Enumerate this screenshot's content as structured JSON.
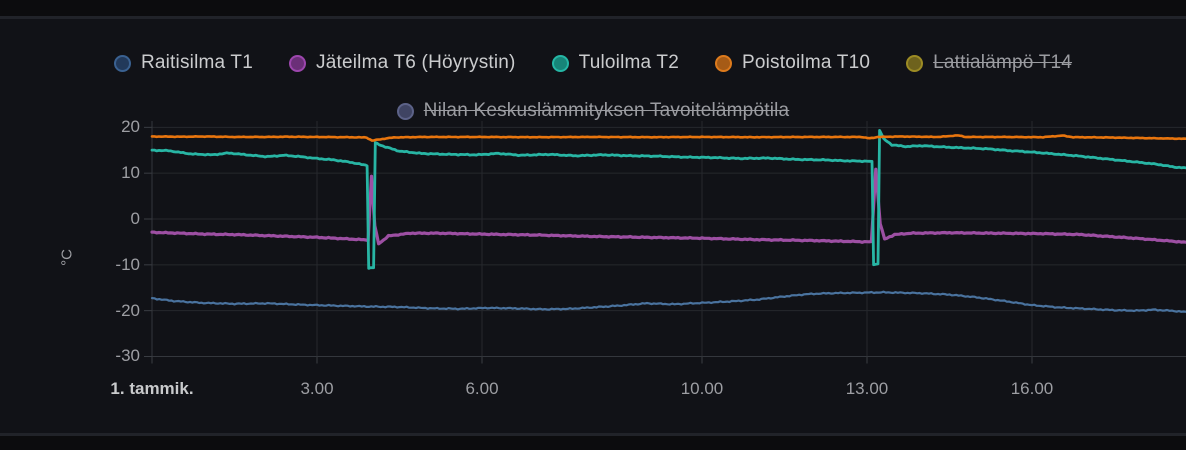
{
  "panel": {
    "background": "#111217",
    "page_background": "#0c0c0e",
    "divider_color": "#212329",
    "grid_color": "#26282d",
    "axis_line_color": "#34373d",
    "tick_color": "#3a3d43",
    "axis_label_color": "#9d9ea3",
    "axis_label_bold_color": "#c9cacc"
  },
  "legend": {
    "active_text_color": "#cbccce",
    "hidden_text_color": "#9b9ca1",
    "rows": [
      [
        {
          "label": "Raitisilma T1",
          "color": "#3a6191",
          "fill": "#22395a",
          "hidden": false
        },
        {
          "label": "Jäteilma T6 (Höyrystin)",
          "color": "#9c46ad",
          "fill": "#6b2f78",
          "hidden": false
        },
        {
          "label": "Tuloilma T2",
          "color": "#25b6a5",
          "fill": "#178578",
          "hidden": false
        },
        {
          "label": "Poistoilma T10",
          "color": "#dd7a1c",
          "fill": "#a65b16",
          "hidden": false
        },
        {
          "label": "Lattialämpö T14",
          "color": "#9c8b24",
          "fill": "#6e621d",
          "hidden": true
        }
      ],
      [
        {
          "label": "Nilan Keskuslämmityksen Tavoitelämpötila",
          "color": "#5c6288",
          "fill": "#3f4463",
          "hidden": true
        }
      ]
    ]
  },
  "chart_data": {
    "type": "line",
    "title": "",
    "xlabel": "",
    "ylabel": "°C",
    "x_unit": "hours_of_day",
    "xlim": [
      0,
      18.8
    ],
    "ylim": [
      -32,
      22
    ],
    "grid": true,
    "legend_position": "top",
    "y_ticks": [
      20,
      10,
      0,
      -10,
      -20,
      -30
    ],
    "x_ticks": [
      {
        "t": 0,
        "label": "1. tammik.",
        "bold": true
      },
      {
        "t": 3,
        "label": "3.00",
        "bold": false
      },
      {
        "t": 6,
        "label": "6.00",
        "bold": false
      },
      {
        "t": 10,
        "label": "10.00",
        "bold": false
      },
      {
        "t": 13,
        "label": "13.00",
        "bold": false
      },
      {
        "t": 16,
        "label": "16.00",
        "bold": false
      }
    ],
    "series": [
      {
        "name": "Raitisilma T1",
        "color": "#4a739f",
        "width": 2.2,
        "jitter": 0.14,
        "points": [
          [
            0,
            -17.3
          ],
          [
            0.4,
            -17.9
          ],
          [
            0.9,
            -18.3
          ],
          [
            1.5,
            -18.5
          ],
          [
            2.1,
            -18.4
          ],
          [
            2.7,
            -18.7
          ],
          [
            3.3,
            -18.9
          ],
          [
            3.9,
            -19.1
          ],
          [
            4.5,
            -19.2
          ],
          [
            5.1,
            -19.5
          ],
          [
            5.6,
            -19.6
          ],
          [
            6.1,
            -19.4
          ],
          [
            6.6,
            -19.5
          ],
          [
            7.1,
            -19.7
          ],
          [
            7.6,
            -19.6
          ],
          [
            8.0,
            -19.3
          ],
          [
            8.5,
            -18.9
          ],
          [
            9.0,
            -18.4
          ],
          [
            9.5,
            -18.6
          ],
          [
            10.0,
            -18.3
          ],
          [
            10.5,
            -18.0
          ],
          [
            11.0,
            -17.6
          ],
          [
            11.5,
            -16.9
          ],
          [
            11.9,
            -16.4
          ],
          [
            12.3,
            -16.2
          ],
          [
            13.3,
            -16.0
          ],
          [
            14.0,
            -16.2
          ],
          [
            14.5,
            -16.5
          ],
          [
            15.0,
            -17.1
          ],
          [
            15.5,
            -17.9
          ],
          [
            16.0,
            -18.8
          ],
          [
            16.5,
            -19.3
          ],
          [
            17.0,
            -19.6
          ],
          [
            17.5,
            -19.9
          ],
          [
            17.9,
            -20.0
          ],
          [
            18.2,
            -19.8
          ],
          [
            18.5,
            -20.0
          ],
          [
            18.8,
            -20.3
          ]
        ]
      },
      {
        "name": "Jäteilma T6 (Höyrystin)",
        "color": "#9d4fa3",
        "width": 3.2,
        "jitter": 0.12,
        "points": [
          [
            0,
            -2.9
          ],
          [
            0.5,
            -3.1
          ],
          [
            1,
            -3.3
          ],
          [
            1.5,
            -3.4
          ],
          [
            2,
            -3.6
          ],
          [
            2.5,
            -3.8
          ],
          [
            3,
            -4.0
          ],
          [
            3.5,
            -4.3
          ],
          [
            3.93,
            -4.6
          ],
          [
            3.99,
            9.3
          ],
          [
            4.05,
            -1.5
          ],
          [
            4.12,
            -5.4
          ],
          [
            4.3,
            -3.7
          ],
          [
            4.7,
            -3.1
          ],
          [
            5.2,
            -3.1
          ],
          [
            6,
            -3.3
          ],
          [
            7,
            -3.5
          ],
          [
            8,
            -3.8
          ],
          [
            9,
            -4.0
          ],
          [
            10,
            -4.2
          ],
          [
            11,
            -4.5
          ],
          [
            12,
            -4.7
          ],
          [
            12.7,
            -4.9
          ],
          [
            13.08,
            -5.0
          ],
          [
            13.16,
            10.9
          ],
          [
            13.24,
            -1.0
          ],
          [
            13.32,
            -4.4
          ],
          [
            13.5,
            -3.4
          ],
          [
            13.8,
            -3.1
          ],
          [
            14.5,
            -3.0
          ],
          [
            15.3,
            -3.1
          ],
          [
            16.2,
            -3.2
          ],
          [
            16.9,
            -3.4
          ],
          [
            17.5,
            -3.9
          ],
          [
            18.1,
            -4.4
          ],
          [
            18.8,
            -5.1
          ]
        ]
      },
      {
        "name": "Tuloilma T2",
        "color": "#28b5a4",
        "width": 2.8,
        "jitter": 0.12,
        "points": [
          [
            0,
            15.0
          ],
          [
            0.3,
            14.9
          ],
          [
            0.7,
            14.2
          ],
          [
            1.1,
            14.0
          ],
          [
            1.4,
            14.4
          ],
          [
            1.8,
            13.9
          ],
          [
            2.1,
            13.6
          ],
          [
            2.4,
            13.9
          ],
          [
            2.7,
            13.6
          ],
          [
            3.0,
            13.2
          ],
          [
            3.3,
            12.9
          ],
          [
            3.6,
            12.4
          ],
          [
            3.85,
            11.8
          ],
          [
            3.91,
            11.7
          ],
          [
            3.94,
            -10.7
          ],
          [
            4.03,
            -10.6
          ],
          [
            4.06,
            16.6
          ],
          [
            4.2,
            15.9
          ],
          [
            4.5,
            14.8
          ],
          [
            4.9,
            14.3
          ],
          [
            5.4,
            14.1
          ],
          [
            5.9,
            14.0
          ],
          [
            6.3,
            14.3
          ],
          [
            6.7,
            13.9
          ],
          [
            7.2,
            14.1
          ],
          [
            7.7,
            13.8
          ],
          [
            8.2,
            14.0
          ],
          [
            8.7,
            13.8
          ],
          [
            9.2,
            13.7
          ],
          [
            9.7,
            13.5
          ],
          [
            10.2,
            13.4
          ],
          [
            10.7,
            13.2
          ],
          [
            11.2,
            13.3
          ],
          [
            11.7,
            13.0
          ],
          [
            12.2,
            12.9
          ],
          [
            12.6,
            12.7
          ],
          [
            13.0,
            12.6
          ],
          [
            13.09,
            12.5
          ],
          [
            13.12,
            -9.9
          ],
          [
            13.2,
            -9.8
          ],
          [
            13.23,
            19.4
          ],
          [
            13.3,
            17.5
          ],
          [
            13.45,
            16.2
          ],
          [
            13.7,
            15.8
          ],
          [
            14.0,
            16.0
          ],
          [
            14.4,
            15.7
          ],
          [
            14.8,
            15.5
          ],
          [
            15.2,
            15.3
          ],
          [
            15.6,
            14.9
          ],
          [
            16.0,
            14.6
          ],
          [
            16.4,
            14.2
          ],
          [
            16.8,
            13.8
          ],
          [
            17.2,
            13.3
          ],
          [
            17.6,
            12.8
          ],
          [
            18.0,
            12.3
          ],
          [
            18.3,
            11.9
          ],
          [
            18.55,
            11.4
          ],
          [
            18.8,
            11.1
          ]
        ]
      },
      {
        "name": "Poistoilma T10",
        "color": "#e8750e",
        "width": 2.6,
        "jitter": 0.07,
        "points": [
          [
            0,
            18.0
          ],
          [
            0.5,
            17.95
          ],
          [
            1,
            18.0
          ],
          [
            1.5,
            17.9
          ],
          [
            2,
            17.9
          ],
          [
            2.5,
            17.95
          ],
          [
            3,
            17.9
          ],
          [
            3.5,
            17.85
          ],
          [
            3.9,
            17.8
          ],
          [
            4.0,
            17.1
          ],
          [
            4.15,
            17.4
          ],
          [
            4.4,
            17.8
          ],
          [
            5,
            17.9
          ],
          [
            6,
            17.9
          ],
          [
            7,
            17.85
          ],
          [
            8,
            17.9
          ],
          [
            9,
            17.85
          ],
          [
            10,
            17.9
          ],
          [
            11,
            17.85
          ],
          [
            12,
            17.9
          ],
          [
            12.9,
            17.9
          ],
          [
            13.05,
            17.6
          ],
          [
            13.2,
            17.9
          ],
          [
            13.6,
            18.0
          ],
          [
            14.3,
            17.9
          ],
          [
            14.65,
            18.25
          ],
          [
            14.8,
            17.9
          ],
          [
            15.5,
            17.9
          ],
          [
            16.2,
            17.85
          ],
          [
            16.55,
            18.2
          ],
          [
            16.75,
            17.85
          ],
          [
            17.3,
            17.8
          ],
          [
            17.8,
            17.7
          ],
          [
            18.3,
            17.6
          ],
          [
            18.8,
            17.5
          ]
        ]
      }
    ]
  }
}
